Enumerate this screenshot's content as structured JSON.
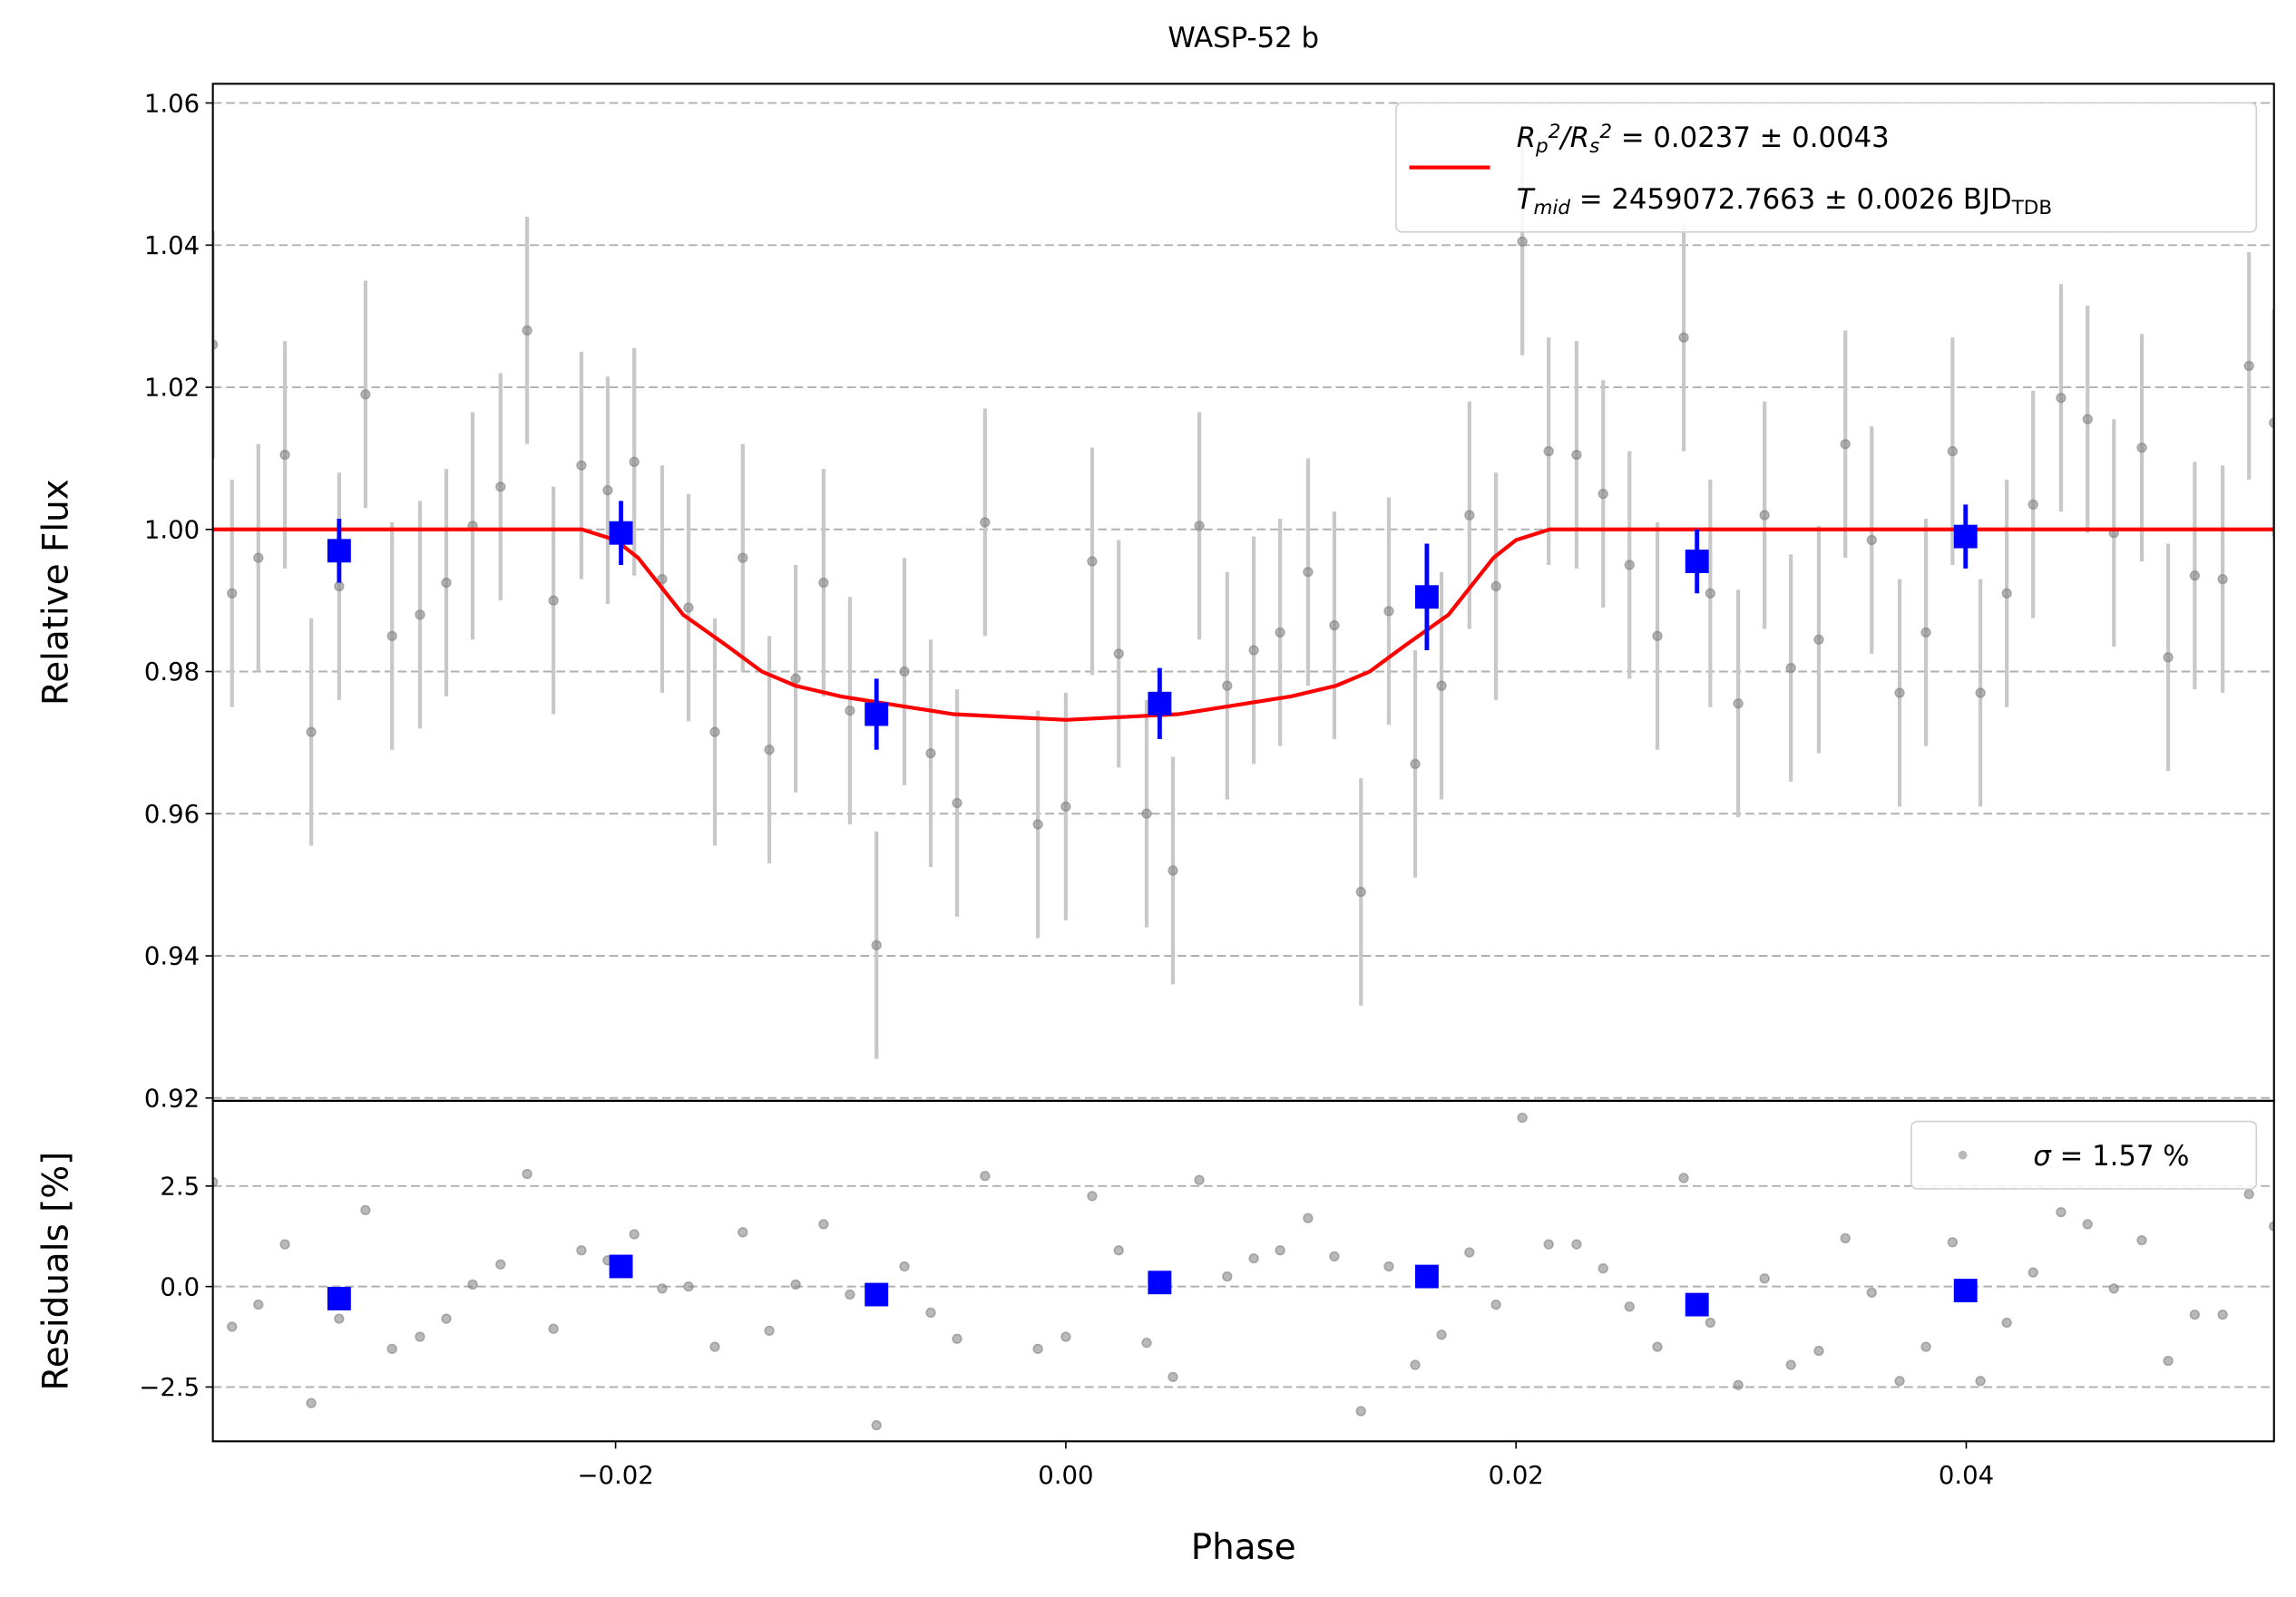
{
  "chart_data": [
    {
      "type": "scatter",
      "title": "WASP-52 b",
      "ylabel": "Relative Flux",
      "xlim": [
        -0.03789,
        0.05367
      ],
      "ylim": [
        0.9196,
        1.0627
      ],
      "yticks": [
        0.92,
        0.94,
        0.96,
        0.98,
        {
          "value": 1.0,
          "label": "1.00"
        },
        1.02,
        1.04,
        1.06
      ],
      "grid": true,
      "legend_position": "upper right",
      "series": [
        {
          "kind": "points",
          "color": "#808080",
          "error_color": "#c8c8c8",
          "error": 0.016,
          "x": [
            -0.03789,
            -0.03704,
            -0.03587,
            -0.03469,
            -0.03352,
            -0.03228,
            -0.03111,
            -0.02993,
            -0.02869,
            -0.02752,
            -0.02635,
            -0.02511,
            -0.02393,
            -0.02276,
            -0.02152,
            -0.02035,
            -0.01917,
            -0.01793,
            -0.01676,
            -0.01559,
            -0.01435,
            -0.01317,
            -0.012,
            -0.01076,
            -0.00959,
            -0.00841,
            -0.00717,
            -0.006,
            -0.00483,
            -0.00359,
            -0.00124,
            0.0,
            0.00117,
            0.00235,
            0.00359,
            0.00476,
            0.00593,
            0.00717,
            0.00835,
            0.00952,
            0.01076,
            0.01193,
            0.01311,
            0.01435,
            0.01552,
            0.01669,
            0.01793,
            0.01911,
            0.02028,
            0.02145,
            0.02269,
            0.02387,
            0.02504,
            0.02628,
            0.02745,
            0.02863,
            0.02987,
            0.03104,
            0.03221,
            0.03345,
            0.03463,
            0.0358,
            0.03704,
            0.03821,
            0.03939,
            0.04063,
            0.0418,
            0.04297,
            0.04421,
            0.04539,
            0.04656,
            0.0478,
            0.04897,
            0.05015,
            0.05139,
            0.05256,
            0.05367
          ],
          "values": [
            1.026,
            0.991,
            0.996,
            1.0105,
            0.9715,
            0.992,
            1.019,
            0.985,
            0.988,
            0.9925,
            1.0005,
            1.006,
            1.028,
            0.99,
            1.009,
            1.0055,
            1.0095,
            0.993,
            0.989,
            0.9715,
            0.996,
            0.969,
            0.979,
            0.9925,
            0.9745,
            0.9415,
            0.98,
            0.9685,
            0.9615,
            1.001,
            0.9585,
            0.961,
            0.9955,
            0.9825,
            0.96,
            0.952,
            1.0005,
            0.978,
            0.983,
            0.9855,
            0.994,
            0.9865,
            0.949,
            0.9885,
            0.967,
            0.978,
            1.002,
            0.992,
            1.0405,
            1.011,
            1.0105,
            1.005,
            0.995,
            0.985,
            1.027,
            0.991,
            0.9755,
            1.002,
            0.9805,
            0.9845,
            1.012,
            0.9985,
            0.977,
            0.9855,
            1.011,
            0.977,
            0.991,
            1.0035,
            1.0185,
            1.0155,
            0.9995,
            1.0115,
            0.982,
            0.9935,
            0.993,
            1.023,
            1.015
          ]
        },
        {
          "kind": "line",
          "color": "#ff0000",
          "x": [
            -0.03789,
            -0.0215,
            -0.02,
            -0.019,
            -0.017,
            -0.015,
            -0.0135,
            -0.012,
            -0.01,
            -0.005,
            0.0,
            0.005,
            0.01,
            0.012,
            0.0135,
            0.015,
            0.017,
            0.019,
            0.02,
            0.0215,
            0.05367
          ],
          "values": [
            1.0,
            1.0,
            0.9985,
            0.996,
            0.988,
            0.9835,
            0.98,
            0.978,
            0.9765,
            0.974,
            0.9732,
            0.974,
            0.9765,
            0.978,
            0.98,
            0.9835,
            0.988,
            0.996,
            0.9985,
            1.0,
            1.0
          ],
          "legend": [
            [
              {
                "text": "R",
                "style": "italic"
              },
              {
                "text": "p",
                "style": "sub"
              },
              {
                "text": "2",
                "style": "sup"
              },
              {
                "text": "/R",
                "style": "italic"
              },
              {
                "text": "s",
                "style": "sub"
              },
              {
                "text": "2",
                "style": "sup"
              },
              {
                "text": " = 0.0237 ± 0.0043",
                "style": "normal"
              }
            ],
            [
              {
                "text": "T",
                "style": "italic"
              },
              {
                "text": "mid",
                "style": "sub"
              },
              {
                "text": " = 2459072.7663 ± 0.0026 BJD",
                "style": "normal"
              },
              {
                "text": "TDB",
                "style": "subnormal"
              }
            ]
          ]
        },
        {
          "kind": "binned",
          "color": "#0000ff",
          "x": [
            -0.03228,
            -0.01976,
            -0.00841,
            0.00417,
            0.01604,
            0.02804,
            0.03997
          ],
          "values": [
            0.997,
            0.9995,
            0.974,
            0.9755,
            0.9905,
            0.9955,
            0.999
          ],
          "errors": [
            0.0045,
            0.0045,
            0.005,
            0.005,
            0.0075,
            0.0045,
            0.0045
          ]
        }
      ]
    },
    {
      "type": "scatter",
      "ylabel": "Residuals [%]",
      "xlabel": "Phase",
      "xlim": [
        -0.03789,
        0.05367
      ],
      "ylim": [
        -3.85,
        4.62
      ],
      "xticks": [
        {
          "value": -0.02,
          "label": "−0.02"
        },
        {
          "value": 0.0,
          "label": "0.00"
        },
        0.02,
        0.04
      ],
      "yticks": [
        {
          "value": -2.5,
          "label": "−2.5"
        },
        {
          "value": 0.0,
          "label": "0.0"
        },
        2.5
      ],
      "grid": true,
      "legend_position": "upper right",
      "series": [
        {
          "kind": "points",
          "color": "#808080",
          "x": [
            -0.03789,
            -0.03704,
            -0.03587,
            -0.03469,
            -0.03352,
            -0.03228,
            -0.03111,
            -0.02993,
            -0.02869,
            -0.02752,
            -0.02635,
            -0.02511,
            -0.02393,
            -0.02276,
            -0.02152,
            -0.02035,
            -0.01917,
            -0.01793,
            -0.01676,
            -0.01559,
            -0.01435,
            -0.01317,
            -0.012,
            -0.01076,
            -0.00959,
            -0.00841,
            -0.00717,
            -0.006,
            -0.00483,
            -0.00359,
            -0.00124,
            0.0,
            0.00117,
            0.00235,
            0.00359,
            0.00476,
            0.00593,
            0.00717,
            0.00835,
            0.00952,
            0.01076,
            0.01193,
            0.01311,
            0.01435,
            0.01552,
            0.01669,
            0.01793,
            0.01911,
            0.02028,
            0.02145,
            0.02269,
            0.02387,
            0.02504,
            0.02628,
            0.02745,
            0.02863,
            0.02987,
            0.03104,
            0.03221,
            0.03345,
            0.03463,
            0.0358,
            0.03704,
            0.03821,
            0.03939,
            0.04063,
            0.0418,
            0.04297,
            0.04421,
            0.04539,
            0.04656,
            0.0478,
            0.04897,
            0.05015,
            0.05139,
            0.05256,
            0.05367
          ],
          "values": [
            2.6,
            -1.0,
            -0.45,
            1.05,
            -2.9,
            -0.8,
            1.9,
            -1.55,
            -1.25,
            -0.8,
            0.05,
            0.55,
            2.8,
            -1.05,
            0.9,
            0.65,
            1.3,
            -0.05,
            0.0,
            -1.5,
            1.35,
            -1.1,
            0.05,
            1.55,
            -0.2,
            -3.45,
            0.5,
            -0.65,
            -1.3,
            2.75,
            -1.55,
            -1.25,
            2.25,
            0.9,
            -1.4,
            -2.25,
            2.65,
            0.25,
            0.7,
            0.9,
            1.7,
            0.75,
            -3.1,
            0.5,
            -1.95,
            -1.2,
            0.85,
            -0.45,
            4.2,
            1.05,
            1.05,
            0.45,
            -0.5,
            -1.5,
            2.7,
            -0.9,
            -2.45,
            0.2,
            -1.95,
            -1.6,
            1.2,
            -0.15,
            -2.35,
            -1.5,
            1.1,
            -2.35,
            -0.9,
            0.35,
            1.85,
            1.55,
            -0.05,
            1.15,
            -1.85,
            -0.7,
            -0.7,
            2.3,
            1.5
          ],
          "legend": [
            [
              {
                "text": "σ",
                "style": "italic"
              },
              {
                "text": " = 1.57 %",
                "style": "normal"
              }
            ]
          ]
        },
        {
          "kind": "binned",
          "color": "#0000ff",
          "x": [
            -0.03228,
            -0.01976,
            -0.00841,
            0.00417,
            0.01604,
            0.02804,
            0.03997
          ],
          "values": [
            -0.3,
            0.5,
            -0.2,
            0.1,
            0.25,
            -0.45,
            -0.1
          ]
        }
      ]
    }
  ]
}
